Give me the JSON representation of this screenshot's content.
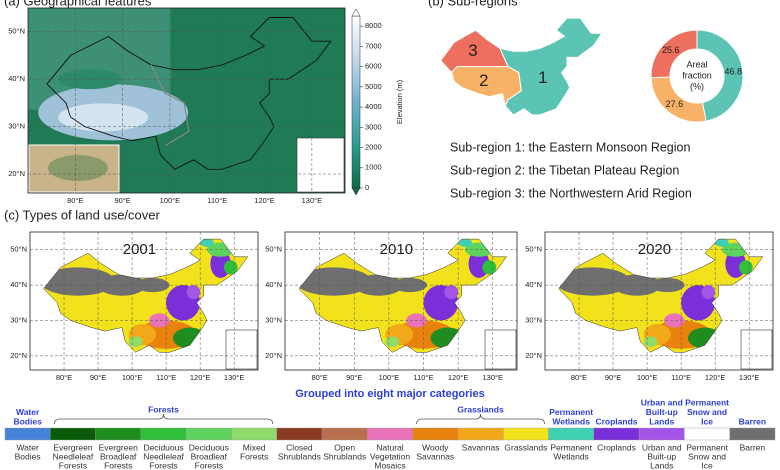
{
  "panel_a": {
    "title": "(a) Geographical features",
    "lat_labels": [
      "50°N",
      "40°N",
      "30°N",
      "20°N"
    ],
    "lon_labels": [
      "80°E",
      "90°E",
      "100°E",
      "110°E",
      "120°E",
      "130°E"
    ],
    "colorbar": {
      "label": "Elevation (m)",
      "lim": [
        0,
        8500
      ],
      "ticks": [
        0,
        1000,
        2000,
        3000,
        4000,
        5000,
        6000,
        7000,
        8000
      ]
    }
  },
  "panel_b": {
    "title": "(b) Sub-regions",
    "region_labels": [
      "1",
      "2",
      "3"
    ],
    "donut": {
      "center_label": [
        "Areal",
        "fraction",
        "(%)"
      ],
      "values": [
        46.8,
        27.6,
        25.6
      ],
      "colors": [
        "#5cc4b4",
        "#f7b267",
        "#ef6f5e"
      ]
    },
    "descriptions": [
      "Sub-region 1: the Eastern Monsoon Region",
      "Sub-region 2: the Tibetan Plateau Region",
      "Sub-region 3: the Northwestern Arid Region"
    ]
  },
  "panel_c": {
    "title": "(c) Types of land use/cover",
    "years": [
      "2001",
      "2010",
      "2020"
    ],
    "lat_labels": [
      "50°N",
      "40°N",
      "30°N",
      "20°N"
    ],
    "lon_labels": [
      "80°E",
      "90°E",
      "100°E",
      "110°E",
      "120°E",
      "130°E"
    ],
    "grouping_note": "Grouped into eight major categories",
    "groups": [
      [
        "Water",
        "Bodies"
      ],
      [
        "Forests"
      ],
      [
        "Grasslands"
      ],
      [
        "Permanent",
        "Wetlands"
      ],
      [
        "Croplands"
      ],
      [
        "Urban and",
        "Built-up",
        "Lands"
      ],
      [
        "Permanent",
        "Snow and",
        "Ice"
      ],
      [
        "Barren"
      ]
    ],
    "classes": [
      {
        "name": [
          "Water",
          "Bodies"
        ],
        "color": "#4682d8"
      },
      {
        "name": [
          "Evergreen",
          "Needleleaf",
          "Forests"
        ],
        "color": "#0a5c0a"
      },
      {
        "name": [
          "Evergreen",
          "Broadleaf",
          "Forests"
        ],
        "color": "#1e8c1e"
      },
      {
        "name": [
          "Deciduous",
          "Needleleaf",
          "Forests"
        ],
        "color": "#2fbf3a"
      },
      {
        "name": [
          "Deciduous",
          "Broadleaf",
          "Forests"
        ],
        "color": "#5fd35f"
      },
      {
        "name": [
          "Mixed",
          "Forests"
        ],
        "color": "#8fdc6b"
      },
      {
        "name": [
          "Closed",
          "Shrublands"
        ],
        "color": "#8b3b22"
      },
      {
        "name": [
          "Open",
          "Shrublands"
        ],
        "color": "#b86f4d"
      },
      {
        "name": [
          "Natural",
          "Vegetation",
          "Mosaics"
        ],
        "color": "#ea72b8"
      },
      {
        "name": [
          "Woody",
          "Savannas"
        ],
        "color": "#e9820c"
      },
      {
        "name": [
          "Savannas"
        ],
        "color": "#f2a818"
      },
      {
        "name": [
          "Grasslands"
        ],
        "color": "#f2e21c"
      },
      {
        "name": [
          "Permanent",
          "Wetlands"
        ],
        "color": "#3fd1b3"
      },
      {
        "name": [
          "Croplands"
        ],
        "color": "#7b2fd8"
      },
      {
        "name": [
          "Urban and",
          "Built-up",
          "Lands"
        ],
        "color": "#a255e6"
      },
      {
        "name": [
          "Permanent",
          "Snow and",
          "Ice"
        ],
        "color": "#ffffff"
      },
      {
        "name": [
          "Barren"
        ],
        "color": "#6f6f6f"
      }
    ]
  }
}
